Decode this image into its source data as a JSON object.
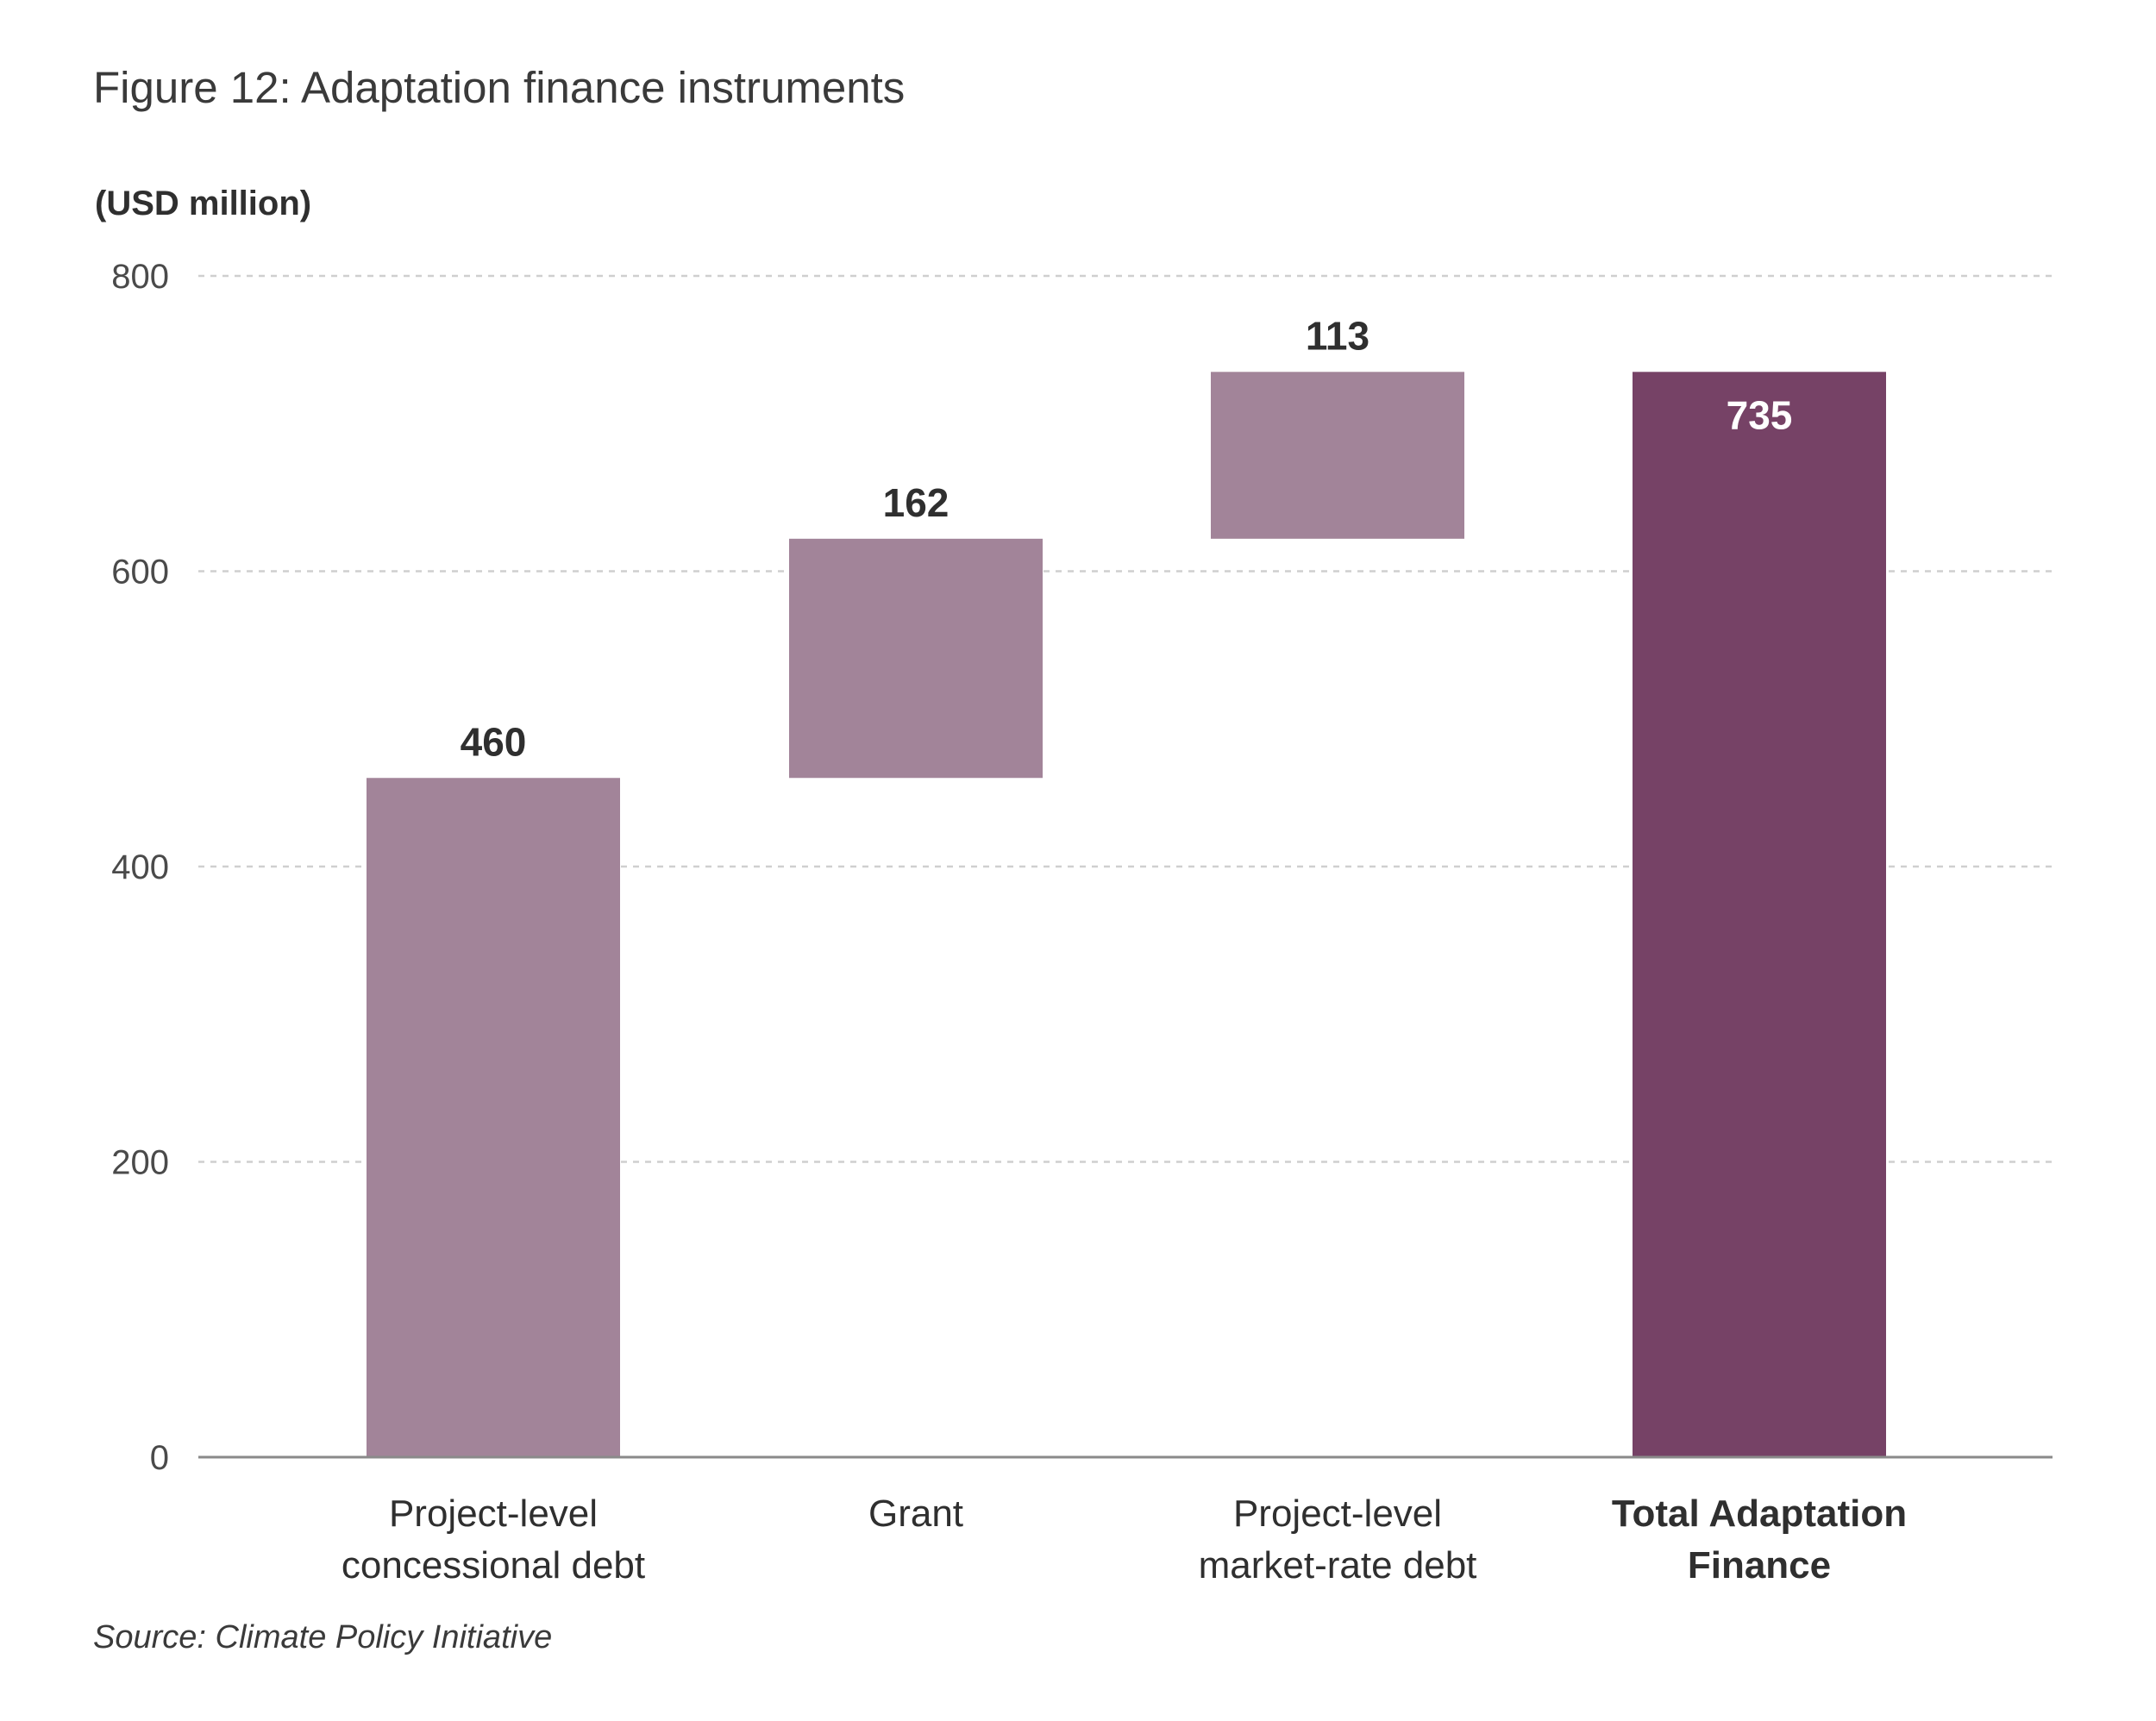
{
  "figure": {
    "title": "Figure 12: Adaptation finance instruments",
    "unit_label": "(USD million)",
    "source": "Source: Climate Policy Initiative"
  },
  "colors": {
    "component_bar": "#a28499",
    "total_bar": "#764266",
    "grid": "#cfcfcf",
    "axis": "#8a8a8a",
    "label_dark": "#2f2f2f",
    "label_light": "#ffffff"
  },
  "chart_data": {
    "type": "bar",
    "subtype": "waterfall",
    "title": "Figure 12: Adaptation finance instruments",
    "ylabel": "(USD million)",
    "ylim": [
      0,
      800
    ],
    "yticks": [
      0,
      200,
      400,
      600,
      800
    ],
    "grid": true,
    "categories": [
      [
        "Project-level",
        "concessional debt"
      ],
      [
        "Grant"
      ],
      [
        "Project-level",
        "market-rate debt"
      ],
      [
        "Total Adaptation",
        "Finance"
      ]
    ],
    "values": [
      460,
      162,
      113,
      735
    ],
    "value_labels": [
      "460",
      "162",
      "113",
      "735"
    ],
    "bar_roles": [
      "increment",
      "increment",
      "increment",
      "total"
    ]
  }
}
